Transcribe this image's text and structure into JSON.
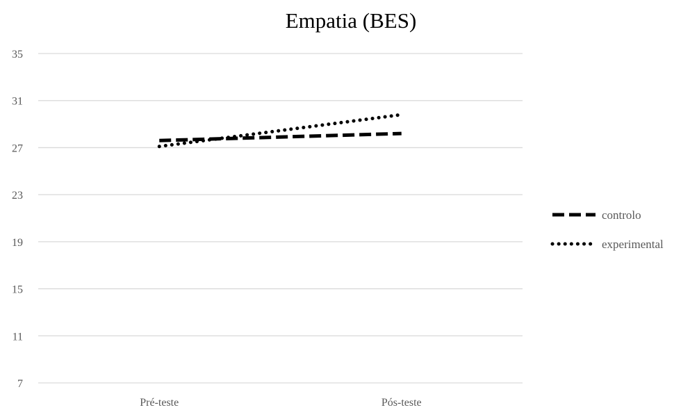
{
  "chart_data": {
    "type": "line",
    "title": "Empatia (BES)",
    "xlabel": "",
    "ylabel": "",
    "categories": [
      "Pré-teste",
      "Pós-teste"
    ],
    "ylim": [
      7,
      35
    ],
    "yticks": [
      "35",
      "31",
      "27",
      "23",
      "19",
      "15",
      "11",
      "7"
    ],
    "grid": true,
    "legend_position": "right",
    "series": [
      {
        "name": "controlo",
        "values": [
          27.6,
          28.2
        ],
        "style": "dashed",
        "color": "#000000"
      },
      {
        "name": "experimental",
        "values": [
          27.1,
          29.8
        ],
        "style": "dotted",
        "color": "#000000"
      }
    ]
  }
}
